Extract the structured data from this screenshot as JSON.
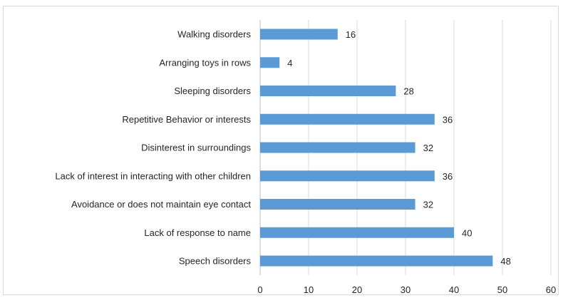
{
  "chart_data": {
    "type": "bar",
    "orientation": "horizontal",
    "categories": [
      "Walking disorders",
      "Arranging toys in rows",
      "Sleeping disorders",
      "Repetitive Behavior or interests",
      "Disinterest in surroundings",
      "Lack of interest in interacting with other children",
      "Avoidance or does not maintain eye contact",
      "Lack of response to name",
      "Speech disorders"
    ],
    "values": [
      16,
      4,
      28,
      36,
      32,
      36,
      32,
      40,
      48
    ],
    "xlim": [
      0,
      60
    ],
    "xticks": [
      "0",
      "10",
      "20",
      "30",
      "40",
      "50",
      "60"
    ],
    "grid": "vertical",
    "bar_color": "#5b9bd5",
    "grid_color": "#d9d9d9",
    "title": "",
    "xlabel": "",
    "ylabel": ""
  }
}
